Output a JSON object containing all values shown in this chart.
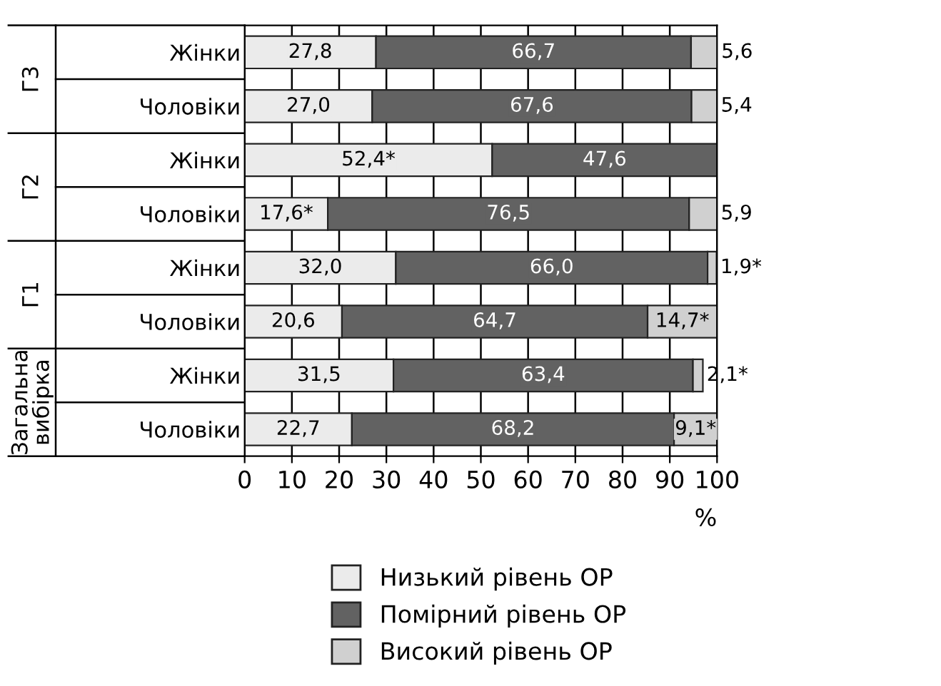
{
  "chart_data": {
    "type": "bar",
    "orientation": "horizontal",
    "stacked": true,
    "categories": [
      "Жінки",
      "Чоловіки",
      "Жінки",
      "Чоловіки",
      "Жінки",
      "Чоловіки",
      "Жінки",
      "Чоловіки"
    ],
    "series": [
      {
        "name": "Низький рівень ОР",
        "color": "#ebebeb",
        "values": [
          27.8,
          27.0,
          52.4,
          17.6,
          32.0,
          20.6,
          31.5,
          22.7
        ],
        "value_labels": [
          "27,8",
          "27,0",
          "52,4*",
          "17,6*",
          "32,0",
          "20,6",
          "31,5",
          "22,7"
        ]
      },
      {
        "name": "Помірний рівень ОР",
        "color": "#626262",
        "values": [
          66.7,
          67.6,
          47.6,
          76.5,
          66.0,
          64.7,
          63.4,
          68.2
        ],
        "value_labels": [
          "66,7",
          "67,6",
          "47,6",
          "76,5",
          "66,0",
          "64,7",
          "63,4",
          "68,2"
        ]
      },
      {
        "name": "Високий рівень ОР",
        "color": "#d0d0d0",
        "values": [
          5.6,
          5.4,
          null,
          5.9,
          1.9,
          14.7,
          2.1,
          9.1
        ],
        "value_labels": [
          "5,6",
          "5,4",
          null,
          "5,9",
          "1,9*",
          "14,7*",
          "2,1*",
          "9,1*"
        ]
      }
    ],
    "annotations": [
      "Г3",
      "Г2",
      "Г1",
      "Загальна\nвибірка"
    ],
    "xlabel": "%",
    "xlim": [
      0,
      100
    ],
    "xticks": [
      0,
      10,
      20,
      30,
      40,
      50,
      60,
      70,
      80,
      90,
      100
    ],
    "grid": "x",
    "legend": "bottom"
  }
}
